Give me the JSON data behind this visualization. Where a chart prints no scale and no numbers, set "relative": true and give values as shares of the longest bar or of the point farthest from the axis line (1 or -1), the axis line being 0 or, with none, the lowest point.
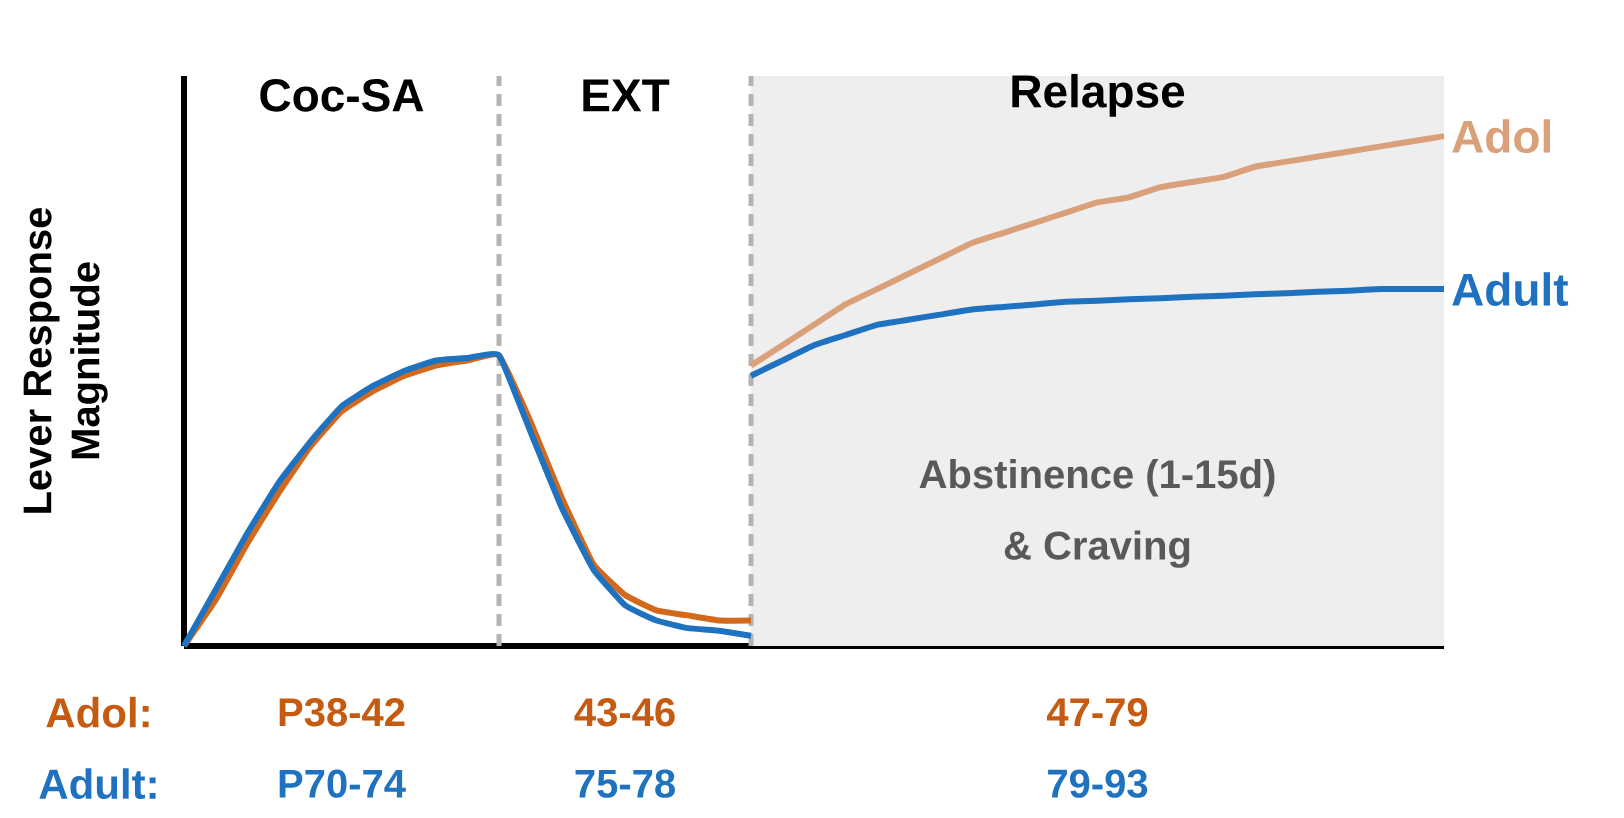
{
  "chart_data": {
    "type": "line",
    "relative": true,
    "ylabel": "Lever Response Magnitude",
    "marker": "none",
    "line_style": "solid",
    "categories": [
      null,
      null,
      null,
      null,
      null,
      null,
      null,
      null,
      null,
      null,
      null,
      null,
      null,
      null,
      null,
      null,
      null,
      null,
      null,
      null,
      null,
      null,
      null,
      null,
      null,
      null,
      null,
      null,
      null,
      null,
      null,
      null,
      null,
      null,
      null,
      null,
      null,
      null,
      null,
      null,
      null
    ],
    "series": [
      {
        "color": "#d4691c",
        "values": [
          0,
          0.09,
          0.2,
          0.3,
          0.39,
          0.46,
          0.5,
          0.53,
          0.55,
          0.56,
          0.57,
          0.44,
          0.29,
          0.16,
          0.1,
          0.07,
          0.06,
          0.05,
          0.05,
          null,
          null,
          null,
          null,
          null,
          null,
          null,
          null,
          null,
          null,
          null,
          null,
          null,
          null,
          null,
          null,
          null,
          null,
          null,
          null,
          null,
          null
        ]
      },
      {
        "color": "#1f72c0",
        "values": [
          0,
          0.11,
          0.22,
          0.32,
          0.4,
          0.47,
          0.51,
          0.54,
          0.56,
          0.565,
          0.57,
          0.42,
          0.27,
          0.15,
          0.08,
          0.05,
          0.035,
          0.03,
          0.02,
          null,
          null,
          null,
          null,
          null,
          null,
          null,
          null,
          null,
          null,
          null,
          null,
          null,
          null,
          null,
          null,
          null,
          null,
          null,
          null,
          null,
          null
        ]
      },
      {
        "name": "Adol",
        "color": "#d9a07a",
        "values": [
          null,
          null,
          null,
          null,
          null,
          null,
          null,
          null,
          null,
          null,
          null,
          null,
          null,
          null,
          null,
          null,
          null,
          null,
          0.55,
          0.59,
          0.63,
          0.67,
          0.7,
          0.73,
          0.76,
          0.79,
          0.81,
          0.83,
          0.85,
          0.87,
          0.88,
          0.9,
          0.91,
          0.92,
          0.94,
          0.95,
          0.96,
          0.97,
          0.98,
          0.99,
          1.0
        ]
      },
      {
        "name": "Adult",
        "color": "#1f72c0",
        "values": [
          null,
          null,
          null,
          null,
          null,
          null,
          null,
          null,
          null,
          null,
          null,
          null,
          null,
          null,
          null,
          null,
          null,
          null,
          0.53,
          0.56,
          0.59,
          0.61,
          0.63,
          0.64,
          0.65,
          0.66,
          0.665,
          0.67,
          0.675,
          0.677,
          0.68,
          0.682,
          0.685,
          0.687,
          0.69,
          0.692,
          0.695,
          0.697,
          0.7,
          0.7,
          0.7
        ]
      }
    ],
    "annotations": [
      "Coc-SA",
      "EXT",
      "Relapse",
      "Abstinence (1-15d)",
      "& Craving",
      "Adol:",
      "P38-42",
      "43-46",
      "47-79",
      "Adult:",
      "P70-74",
      "75-78",
      "79-93"
    ]
  }
}
